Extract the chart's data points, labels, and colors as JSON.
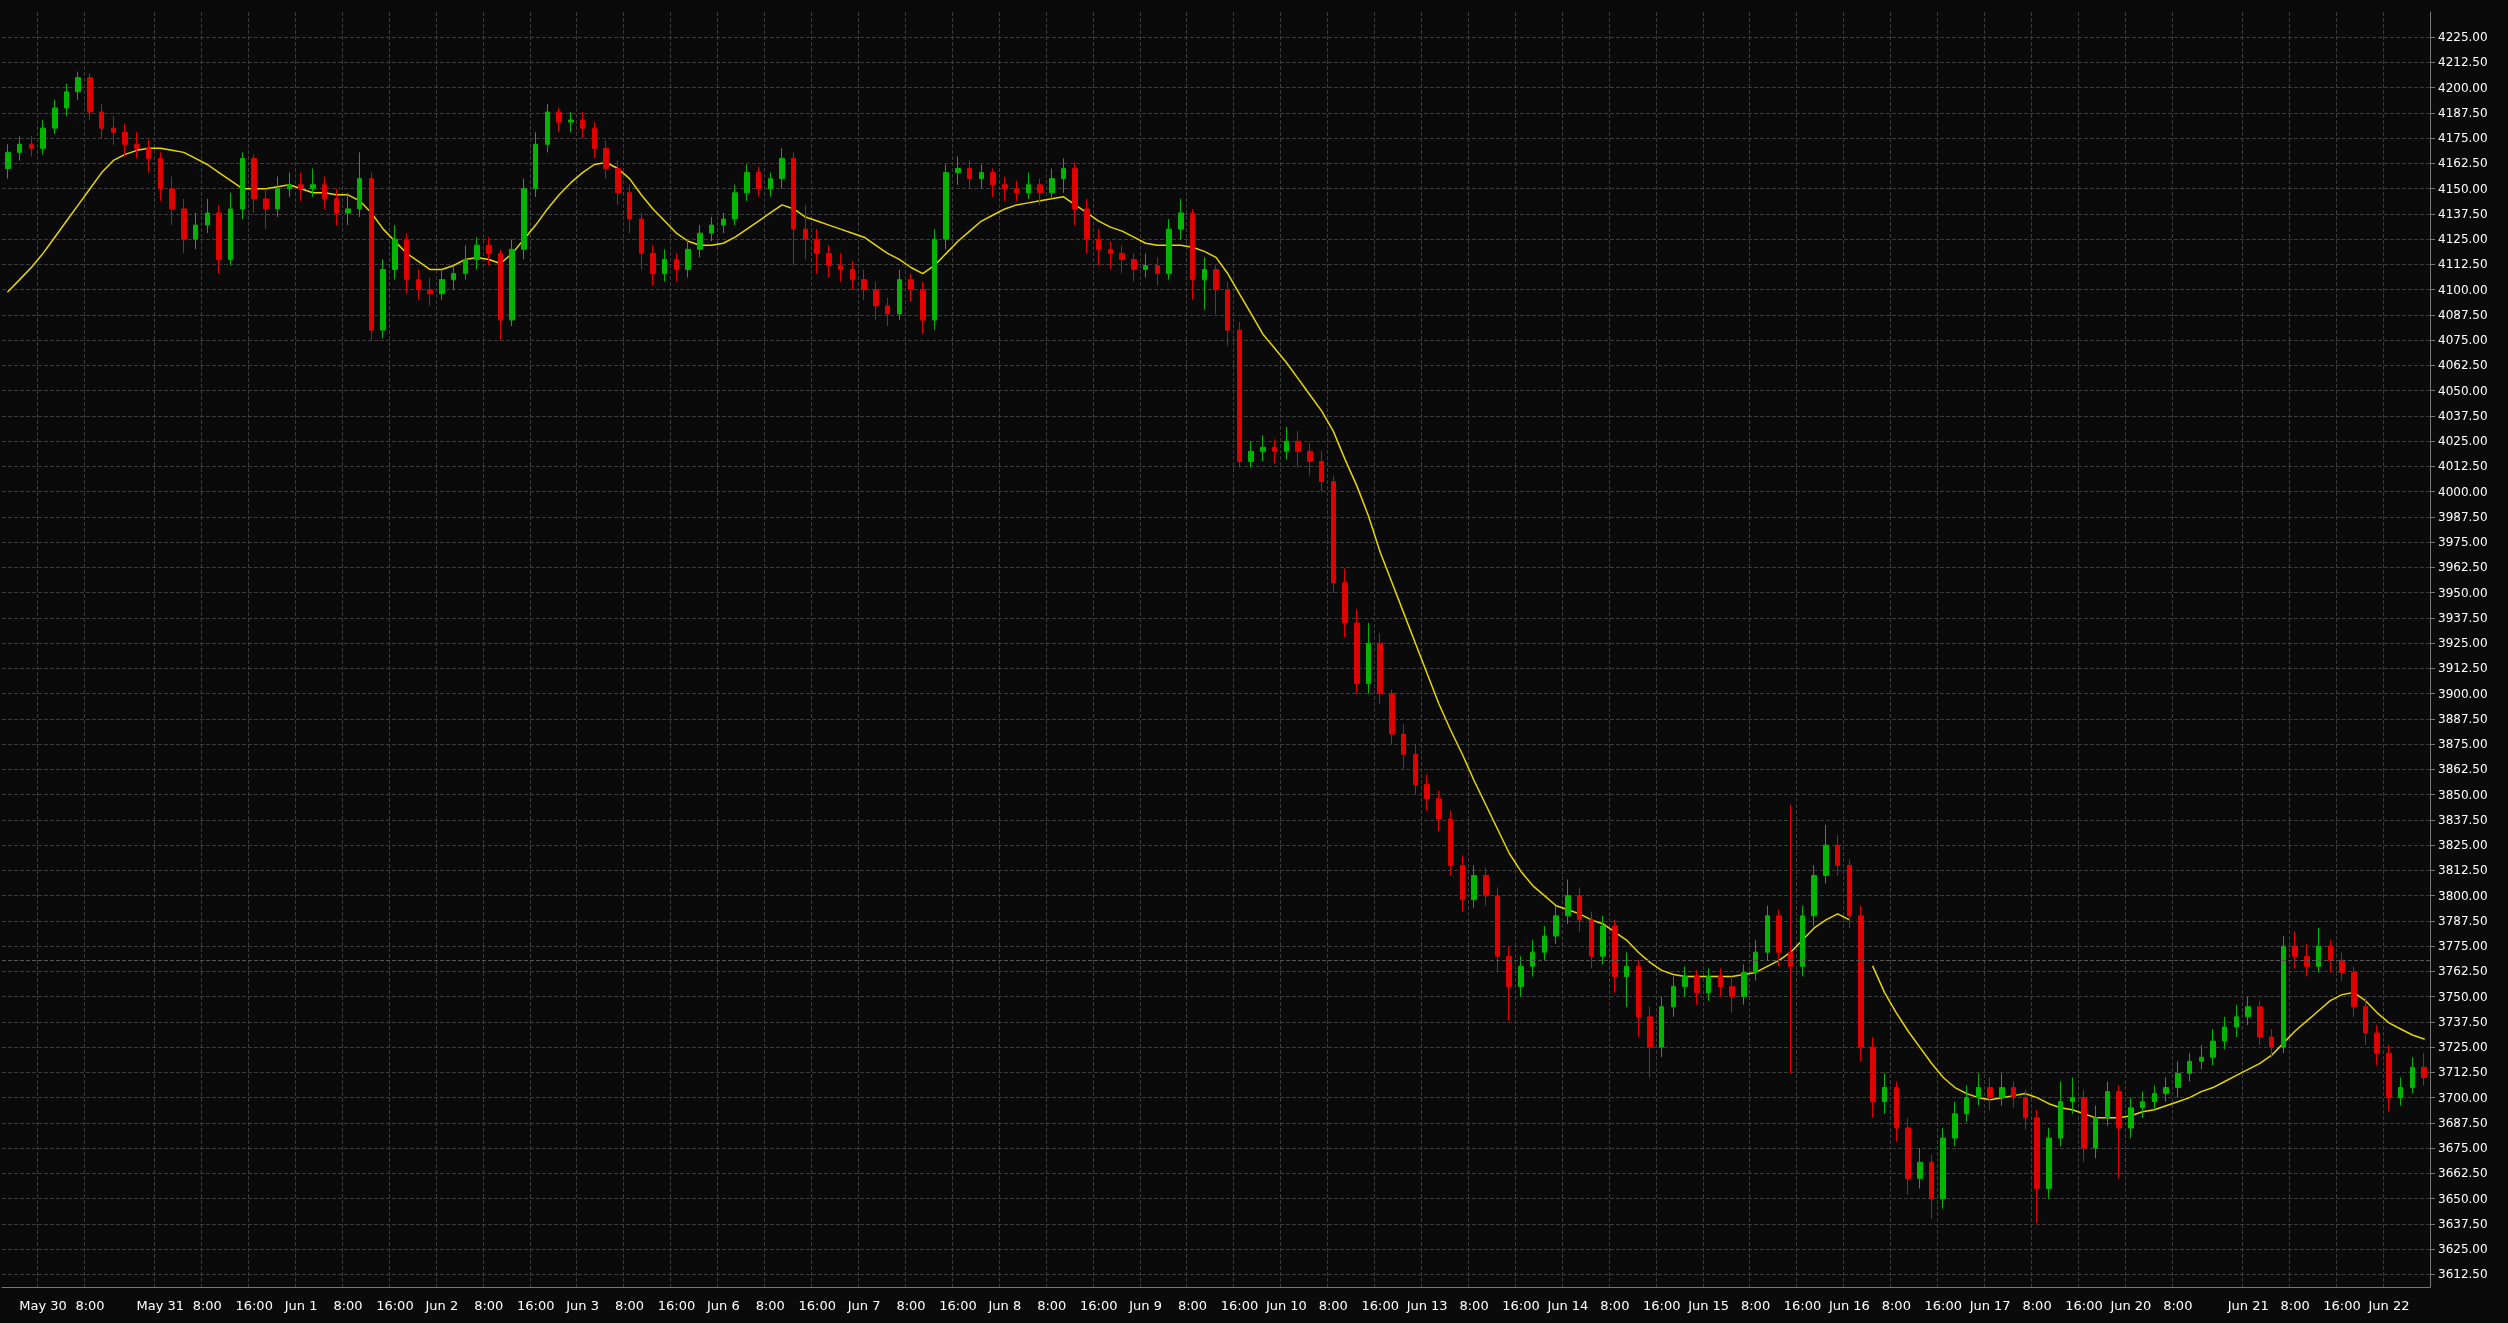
{
  "chart_data": {
    "type": "candlestick",
    "grid": true,
    "marker": "none",
    "categories": [
      null,
      null,
      null,
      "May 30",
      null,
      null,
      null,
      "8:00",
      null,
      null,
      null,
      null,
      null,
      "May 31",
      null,
      null,
      null,
      "8:00",
      null,
      null,
      null,
      "16:00",
      null,
      null,
      null,
      "Jun 1",
      null,
      null,
      null,
      "8:00",
      null,
      null,
      null,
      "16:00",
      null,
      null,
      null,
      "Jun 2",
      null,
      null,
      null,
      "8:00",
      null,
      null,
      null,
      "16:00",
      null,
      null,
      null,
      "Jun 3",
      null,
      null,
      null,
      "8:00",
      null,
      null,
      null,
      "16:00",
      null,
      null,
      null,
      "Jun 6",
      null,
      null,
      null,
      "8:00",
      null,
      null,
      null,
      "16:00",
      null,
      null,
      null,
      "Jun 7",
      null,
      null,
      null,
      "8:00",
      null,
      null,
      null,
      "16:00",
      null,
      null,
      null,
      "Jun 8",
      null,
      null,
      null,
      "8:00",
      null,
      null,
      null,
      "16:00",
      null,
      null,
      null,
      "Jun 9",
      null,
      null,
      null,
      "8:00",
      null,
      null,
      null,
      "16:00",
      null,
      null,
      null,
      "Jun 10",
      null,
      null,
      null,
      "8:00",
      null,
      null,
      null,
      "16:00",
      null,
      null,
      null,
      "Jun 13",
      null,
      null,
      null,
      "8:00",
      null,
      null,
      null,
      "16:00",
      null,
      null,
      null,
      "Jun 14",
      null,
      null,
      null,
      "8:00",
      null,
      null,
      null,
      "16:00",
      null,
      null,
      null,
      "Jun 15",
      null,
      null,
      null,
      "8:00",
      null,
      null,
      null,
      "16:00",
      null,
      null,
      null,
      "Jun 16",
      null,
      null,
      null,
      "8:00",
      null,
      null,
      null,
      "16:00",
      null,
      null,
      null,
      "Jun 17",
      null,
      null,
      null,
      "8:00",
      null,
      null,
      null,
      "16:00",
      null,
      null,
      null,
      "Jun 20",
      null,
      null,
      null,
      "8:00",
      null,
      null,
      null,
      null,
      null,
      "Jun 21",
      null,
      null,
      null,
      "8:00",
      null,
      null,
      null,
      "16:00",
      null,
      null,
      null,
      "Jun 22",
      null,
      null,
      null
    ],
    "ohlc": [
      [
        4160,
        4172,
        4155,
        4168
      ],
      [
        4168,
        4176,
        4164,
        4172
      ],
      [
        4172,
        4176,
        4166,
        4170
      ],
      [
        4170,
        4184,
        4167,
        4180
      ],
      [
        4180,
        4194,
        4177,
        4190
      ],
      [
        4190,
        4202,
        4186,
        4198
      ],
      [
        4198,
        4208,
        4194,
        4205
      ],
      [
        4205,
        4207,
        4184,
        4188
      ],
      [
        4188,
        4192,
        4175,
        4180
      ],
      [
        4180,
        4186,
        4172,
        4178
      ],
      [
        4178,
        4182,
        4166,
        4172
      ],
      [
        4172,
        4178,
        4165,
        4170
      ],
      [
        4170,
        4174,
        4158,
        4165
      ],
      [
        4165,
        4168,
        4144,
        4150
      ],
      [
        4150,
        4156,
        4132,
        4140
      ],
      [
        4140,
        4145,
        4118,
        4125
      ],
      [
        4125,
        4138,
        4120,
        4132
      ],
      [
        4132,
        4145,
        4128,
        4138
      ],
      [
        4138,
        4142,
        4108,
        4115
      ],
      [
        4115,
        4148,
        4112,
        4140
      ],
      [
        4140,
        4168,
        4135,
        4165
      ],
      [
        4165,
        4167,
        4138,
        4145
      ],
      [
        4145,
        4150,
        4130,
        4140
      ],
      [
        4140,
        4156,
        4136,
        4150
      ],
      [
        4150,
        4158,
        4146,
        4152
      ],
      [
        4152,
        4158,
        4144,
        4150
      ],
      [
        4150,
        4160,
        4146,
        4152
      ],
      [
        4152,
        4156,
        4140,
        4145
      ],
      [
        4145,
        4150,
        4132,
        4138
      ],
      [
        4138,
        4148,
        4132,
        4140
      ],
      [
        4140,
        4168,
        4136,
        4155
      ],
      [
        4155,
        4158,
        4075,
        4080
      ],
      [
        4080,
        4115,
        4076,
        4110
      ],
      [
        4110,
        4132,
        4105,
        4125
      ],
      [
        4125,
        4128,
        4098,
        4105
      ],
      [
        4105,
        4110,
        4095,
        4100
      ],
      [
        4100,
        4106,
        4092,
        4098
      ],
      [
        4098,
        4110,
        4095,
        4105
      ],
      [
        4105,
        4112,
        4100,
        4108
      ],
      [
        4108,
        4122,
        4105,
        4115
      ],
      [
        4115,
        4126,
        4110,
        4122
      ],
      [
        4122,
        4126,
        4112,
        4118
      ],
      [
        4118,
        4120,
        4075,
        4085
      ],
      [
        4085,
        4125,
        4082,
        4120
      ],
      [
        4120,
        4155,
        4115,
        4150
      ],
      [
        4150,
        4178,
        4146,
        4172
      ],
      [
        4172,
        4192,
        4168,
        4188
      ],
      [
        4188,
        4190,
        4178,
        4183
      ],
      [
        4183,
        4188,
        4178,
        4184
      ],
      [
        4184,
        4188,
        4175,
        4180
      ],
      [
        4180,
        4183,
        4165,
        4170
      ],
      [
        4170,
        4174,
        4155,
        4160
      ],
      [
        4160,
        4164,
        4142,
        4148
      ],
      [
        4148,
        4152,
        4128,
        4135
      ],
      [
        4135,
        4138,
        4110,
        4118
      ],
      [
        4118,
        4122,
        4102,
        4108
      ],
      [
        4108,
        4120,
        4104,
        4115
      ],
      [
        4115,
        4118,
        4104,
        4110
      ],
      [
        4110,
        4125,
        4106,
        4120
      ],
      [
        4120,
        4132,
        4116,
        4128
      ],
      [
        4128,
        4136,
        4124,
        4132
      ],
      [
        4132,
        4138,
        4128,
        4135
      ],
      [
        4135,
        4152,
        4132,
        4148
      ],
      [
        4148,
        4162,
        4144,
        4158
      ],
      [
        4158,
        4161,
        4146,
        4150
      ],
      [
        4150,
        4158,
        4146,
        4155
      ],
      [
        4155,
        4170,
        4150,
        4165
      ],
      [
        4165,
        4168,
        4112,
        4130
      ],
      [
        4130,
        4142,
        4115,
        4125
      ],
      [
        4125,
        4130,
        4108,
        4118
      ],
      [
        4118,
        4122,
        4106,
        4112
      ],
      [
        4112,
        4118,
        4104,
        4110
      ],
      [
        4110,
        4114,
        4100,
        4105
      ],
      [
        4105,
        4110,
        4095,
        4100
      ],
      [
        4100,
        4104,
        4085,
        4092
      ],
      [
        4092,
        4096,
        4082,
        4088
      ],
      [
        4088,
        4110,
        4085,
        4105
      ],
      [
        4105,
        4108,
        4094,
        4100
      ],
      [
        4100,
        4104,
        4078,
        4085
      ],
      [
        4085,
        4130,
        4080,
        4125
      ],
      [
        4125,
        4162,
        4120,
        4158
      ],
      [
        4158,
        4166,
        4152,
        4160
      ],
      [
        4160,
        4164,
        4150,
        4155
      ],
      [
        4155,
        4162,
        4150,
        4158
      ],
      [
        4158,
        4160,
        4146,
        4152
      ],
      [
        4152,
        4156,
        4144,
        4150
      ],
      [
        4150,
        4154,
        4144,
        4148
      ],
      [
        4148,
        4158,
        4145,
        4152
      ],
      [
        4152,
        4155,
        4142,
        4148
      ],
      [
        4148,
        4160,
        4145,
        4155
      ],
      [
        4155,
        4165,
        4148,
        4160
      ],
      [
        4160,
        4163,
        4132,
        4140
      ],
      [
        4140,
        4145,
        4118,
        4125
      ],
      [
        4125,
        4130,
        4112,
        4120
      ],
      [
        4120,
        4124,
        4110,
        4118
      ],
      [
        4118,
        4122,
        4108,
        4115
      ],
      [
        4115,
        4118,
        4104,
        4110
      ],
      [
        4110,
        4118,
        4106,
        4112
      ],
      [
        4112,
        4116,
        4102,
        4108
      ],
      [
        4108,
        4135,
        4105,
        4130
      ],
      [
        4130,
        4145,
        4125,
        4138
      ],
      [
        4138,
        4140,
        4095,
        4105
      ],
      [
        4105,
        4116,
        4090,
        4110
      ],
      [
        4110,
        4112,
        4088,
        4100
      ],
      [
        4100,
        4104,
        4072,
        4080
      ],
      [
        4080,
        4084,
        4012,
        4015
      ],
      [
        4015,
        4025,
        4012,
        4020
      ],
      [
        4020,
        4028,
        4015,
        4022
      ],
      [
        4022,
        4026,
        4014,
        4020
      ],
      [
        4020,
        4032,
        4016,
        4025
      ],
      [
        4025,
        4030,
        4012,
        4020
      ],
      [
        4020,
        4024,
        4008,
        4015
      ],
      [
        4015,
        4020,
        4000,
        4005
      ],
      [
        4005,
        4008,
        3950,
        3955
      ],
      [
        3955,
        3962,
        3928,
        3935
      ],
      [
        3935,
        3942,
        3900,
        3905
      ],
      [
        3905,
        3935,
        3900,
        3925
      ],
      [
        3925,
        3930,
        3895,
        3900
      ],
      [
        3900,
        3902,
        3875,
        3880
      ],
      [
        3880,
        3885,
        3862,
        3870
      ],
      [
        3870,
        3875,
        3850,
        3855
      ],
      [
        3855,
        3860,
        3842,
        3848
      ],
      [
        3848,
        3852,
        3832,
        3838
      ],
      [
        3838,
        3842,
        3810,
        3815
      ],
      [
        3815,
        3820,
        3792,
        3798
      ],
      [
        3798,
        3815,
        3794,
        3810
      ],
      [
        3810,
        3814,
        3795,
        3800
      ],
      [
        3800,
        3804,
        3762,
        3770
      ],
      [
        3770,
        3775,
        3738,
        3755
      ],
      [
        3755,
        3770,
        3750,
        3765
      ],
      [
        3765,
        3778,
        3760,
        3772
      ],
      [
        3772,
        3785,
        3768,
        3780
      ],
      [
        3780,
        3795,
        3776,
        3790
      ],
      [
        3790,
        3808,
        3786,
        3800
      ],
      [
        3800,
        3804,
        3782,
        3788
      ],
      [
        3788,
        3792,
        3764,
        3770
      ],
      [
        3770,
        3790,
        3766,
        3785
      ],
      [
        3785,
        3788,
        3752,
        3760
      ],
      [
        3760,
        3772,
        3745,
        3765
      ],
      [
        3765,
        3768,
        3730,
        3740
      ],
      [
        3740,
        3745,
        3710,
        3725
      ],
      [
        3725,
        3750,
        3720,
        3745
      ],
      [
        3745,
        3760,
        3740,
        3755
      ],
      [
        3755,
        3765,
        3750,
        3760
      ],
      [
        3760,
        3763,
        3746,
        3752
      ],
      [
        3752,
        3764,
        3748,
        3760
      ],
      [
        3760,
        3764,
        3750,
        3755
      ],
      [
        3755,
        3760,
        3742,
        3750
      ],
      [
        3750,
        3766,
        3746,
        3762
      ],
      [
        3762,
        3778,
        3758,
        3772
      ],
      [
        3772,
        3795,
        3768,
        3790
      ],
      [
        3790,
        3793,
        3765,
        3772
      ],
      [
        3772,
        3845,
        3712,
        3765
      ],
      [
        3765,
        3795,
        3760,
        3790
      ],
      [
        3790,
        3815,
        3785,
        3810
      ],
      [
        3810,
        3835,
        3806,
        3825
      ],
      [
        3825,
        3830,
        3810,
        3815
      ],
      [
        3815,
        3818,
        3784,
        3790
      ],
      [
        3790,
        3795,
        3718,
        3725
      ],
      [
        3725,
        3730,
        3690,
        3698
      ],
      [
        3698,
        3712,
        3692,
        3705
      ],
      [
        3705,
        3708,
        3678,
        3685
      ],
      [
        3685,
        3690,
        3652,
        3660
      ],
      [
        3660,
        3675,
        3655,
        3668
      ],
      [
        3668,
        3672,
        3640,
        3650
      ],
      [
        3650,
        3685,
        3645,
        3680
      ],
      [
        3680,
        3698,
        3676,
        3692
      ],
      [
        3692,
        3706,
        3688,
        3700
      ],
      [
        3700,
        3712,
        3696,
        3705
      ],
      [
        3705,
        3710,
        3694,
        3700
      ],
      [
        3700,
        3712,
        3696,
        3705
      ],
      [
        3705,
        3708,
        3695,
        3700
      ],
      [
        3700,
        3704,
        3684,
        3690
      ],
      [
        3690,
        3694,
        3638,
        3655
      ],
      [
        3655,
        3685,
        3650,
        3680
      ],
      [
        3680,
        3708,
        3676,
        3698
      ],
      [
        3698,
        3710,
        3692,
        3700
      ],
      [
        3700,
        3704,
        3668,
        3675
      ],
      [
        3675,
        3696,
        3670,
        3690
      ],
      [
        3690,
        3708,
        3686,
        3703
      ],
      [
        3703,
        3706,
        3660,
        3685
      ],
      [
        3685,
        3700,
        3680,
        3695
      ],
      [
        3695,
        3703,
        3690,
        3698
      ],
      [
        3698,
        3706,
        3694,
        3702
      ],
      [
        3702,
        3710,
        3698,
        3705
      ],
      [
        3705,
        3718,
        3700,
        3712
      ],
      [
        3712,
        3722,
        3708,
        3718
      ],
      [
        3718,
        3726,
        3714,
        3720
      ],
      [
        3720,
        3734,
        3716,
        3728
      ],
      [
        3728,
        3740,
        3724,
        3735
      ],
      [
        3735,
        3746,
        3730,
        3740
      ],
      [
        3740,
        3750,
        3736,
        3745
      ],
      [
        3745,
        3748,
        3726,
        3730
      ],
      [
        3730,
        3734,
        3720,
        3725
      ],
      [
        3725,
        3780,
        3722,
        3775
      ],
      [
        3775,
        3782,
        3764,
        3770
      ],
      [
        3770,
        3776,
        3760,
        3765
      ],
      [
        3765,
        3784,
        3762,
        3775
      ],
      [
        3775,
        3778,
        3762,
        3768
      ],
      [
        3768,
        3772,
        3758,
        3762
      ],
      [
        3762,
        3765,
        3740,
        3745
      ],
      [
        3745,
        3750,
        3726,
        3732
      ],
      [
        3732,
        3736,
        3716,
        3722
      ],
      [
        3722,
        3726,
        3693,
        3700
      ],
      [
        3700,
        3710,
        3696,
        3705
      ],
      [
        3705,
        3720,
        3702,
        3715
      ],
      [
        3715,
        3722,
        3706,
        3710
      ]
    ],
    "series": [
      {
        "type": "line",
        "color": "#e6d600",
        "values": [
          4099,
          4105,
          4111,
          4118,
          4126,
          4134,
          4142,
          4150,
          4158,
          4164,
          4167,
          4169,
          4170,
          4170,
          4169,
          4168,
          4165,
          4162,
          4158,
          4154,
          4150,
          4150,
          4150,
          4151,
          4152,
          4150,
          4148,
          4148,
          4147,
          4147,
          4144,
          4138,
          4130,
          4124,
          4118,
          4114,
          4110,
          4110,
          4112,
          4115,
          4116,
          4115,
          4113,
          4118,
          4125,
          4132,
          4140,
          4147,
          4153,
          4158,
          4162,
          4163,
          4160,
          4155,
          4147,
          4140,
          4134,
          4128,
          4124,
          4122,
          4122,
          4123,
          4126,
          4130,
          4134,
          4138,
          4142,
          4140,
          4136,
          4134,
          4132,
          4130,
          4128,
          4126,
          4122,
          4118,
          4115,
          4111,
          4108,
          4112,
          4118,
          4124,
          4129,
          4134,
          4137,
          4140,
          4142,
          4143,
          4144,
          4145,
          4146,
          4142,
          4138,
          4134,
          4131,
          4129,
          4126,
          4123,
          4122,
          4122,
          4122,
          4121,
          4119,
          4116,
          4108,
          4098,
          4088,
          4078,
          4071,
          4064,
          4056,
          4048,
          4040,
          4030,
          4016,
          4003,
          3988,
          3970,
          3955,
          3940,
          3925,
          3910,
          3895,
          3882,
          3870,
          3857,
          3845,
          3833,
          3821,
          3812,
          3805,
          3800,
          3795,
          3793,
          3791,
          3788,
          3786,
          3782,
          3778,
          3772,
          3767,
          3763,
          3761,
          3760,
          3760,
          3760,
          3760,
          3760,
          3761,
          3762,
          3765,
          3768,
          3772,
          3778,
          3784,
          3788,
          3791,
          3788,
          null,
          3765,
          3752,
          3742,
          3733,
          3725,
          3717,
          3710,
          3705,
          3702,
          3700,
          3699,
          3700,
          3701,
          3702,
          3700,
          3697,
          3695,
          3694,
          3692,
          3690,
          3690,
          3690,
          3691,
          3693,
          3694,
          3696,
          3698,
          3700,
          3703,
          3705,
          3708,
          3711,
          3714,
          3717,
          3721,
          3727,
          3733,
          3738,
          3743,
          3748,
          3751,
          3752,
          3748,
          3742,
          3737,
          3734,
          3731,
          3729
        ]
      }
    ],
    "ylim": [
      3606.25,
      4237.5
    ],
    "yticks": [
      {
        "value": 3612.5,
        "label": "3612.50"
      },
      {
        "value": 3625,
        "label": "3625.00"
      },
      {
        "value": 3637.5,
        "label": "3637.50"
      },
      {
        "value": 3650,
        "label": "3650.00"
      },
      {
        "value": 3662.5,
        "label": "3662.50"
      },
      {
        "value": 3675,
        "label": "3675.00"
      },
      {
        "value": 3687.5,
        "label": "3687.50"
      },
      {
        "value": 3700,
        "label": "3700.00"
      },
      {
        "value": 3712.5,
        "label": "3712.50"
      },
      {
        "value": 3725,
        "label": "3725.00"
      },
      {
        "value": 3737.5,
        "label": "3737.50"
      },
      {
        "value": 3750,
        "label": "3750.00"
      },
      {
        "value": 3762.5,
        "label": "3762.50"
      },
      {
        "value": 3775,
        "label": "3775.00"
      },
      {
        "value": 3787.5,
        "label": "3787.50"
      },
      {
        "value": 3800,
        "label": "3800.00"
      },
      {
        "value": 3812.5,
        "label": "3812.50"
      },
      {
        "value": 3825,
        "label": "3825.00"
      },
      {
        "value": 3837.5,
        "label": "3837.50"
      },
      {
        "value": 3850,
        "label": "3850.00"
      },
      {
        "value": 3862.5,
        "label": "3862.50"
      },
      {
        "value": 3875,
        "label": "3875.00"
      },
      {
        "value": 3887.5,
        "label": "3887.50"
      },
      {
        "value": 3900,
        "label": "3900.00"
      },
      {
        "value": 3912.5,
        "label": "3912.50"
      },
      {
        "value": 3925,
        "label": "3925.00"
      },
      {
        "value": 3937.5,
        "label": "3937.50"
      },
      {
        "value": 3950,
        "label": "3950.00"
      },
      {
        "value": 3962.5,
        "label": "3962.50"
      },
      {
        "value": 3975,
        "label": "3975.00"
      },
      {
        "value": 3987.5,
        "label": "3987.50"
      },
      {
        "value": 4000,
        "label": "4000.00"
      },
      {
        "value": 4012.5,
        "label": "4012.50"
      },
      {
        "value": 4025,
        "label": "4025.00"
      },
      {
        "value": 4037.5,
        "label": "4037.50"
      },
      {
        "value": 4050,
        "label": "4050.00"
      },
      {
        "value": 4062.5,
        "label": "4062.50"
      },
      {
        "value": 4075,
        "label": "4075.00"
      },
      {
        "value": 4087.5,
        "label": "4087.50"
      },
      {
        "value": 4100,
        "label": "4100.00"
      },
      {
        "value": 4112.5,
        "label": "4112.50"
      },
      {
        "value": 4125,
        "label": "4125.00"
      },
      {
        "value": 4137.5,
        "label": "4137.50"
      },
      {
        "value": 4150,
        "label": "4150.00"
      },
      {
        "value": 4162.5,
        "label": "4162.50"
      },
      {
        "value": 4175,
        "label": "4175.00"
      },
      {
        "value": 4187.5,
        "label": "4187.50"
      },
      {
        "value": 4200,
        "label": "4200.00"
      },
      {
        "value": 4212.5,
        "label": "4212.50"
      },
      {
        "value": 4225,
        "label": "4225.00"
      }
    ],
    "ref_lines": [
      {
        "axis": "y",
        "value": 3768,
        "color": "#555555",
        "line_style": "dashed"
      }
    ]
  }
}
